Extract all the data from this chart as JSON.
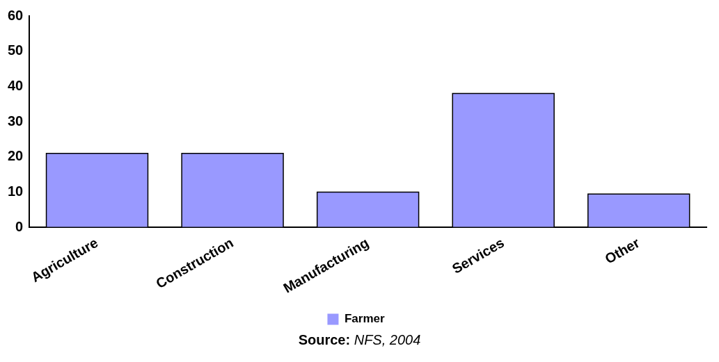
{
  "chart_data": {
    "type": "bar",
    "categories": [
      "Agriculture",
      "Construction",
      "Manufacturing",
      "Services",
      "Other"
    ],
    "series": [
      {
        "name": "Farmer",
        "color": "#9999ff",
        "values": [
          21,
          21,
          10,
          38,
          9.5
        ]
      }
    ],
    "ylim": [
      0,
      60
    ],
    "yticks": [
      0,
      10,
      20,
      30,
      40,
      50,
      60
    ],
    "grid": false,
    "legend": "bottom",
    "annotations": [
      "Source: NFS, 2004"
    ]
  }
}
